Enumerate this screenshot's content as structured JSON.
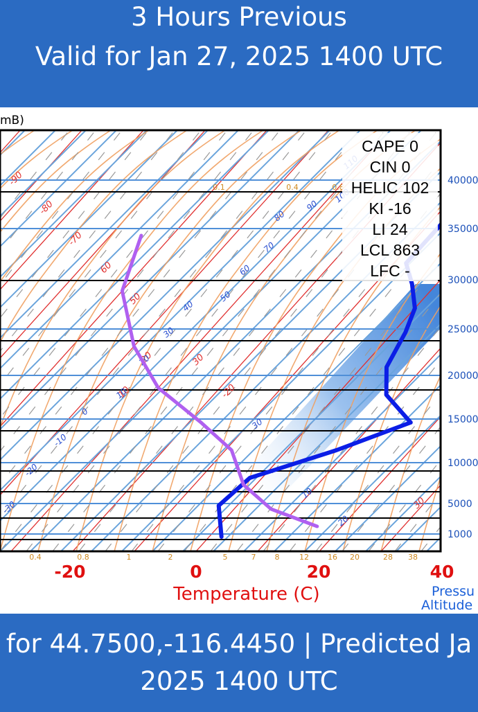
{
  "header": {
    "line1": "3 Hours Previous",
    "line2": "Valid for Jan 27, 2025 1400 UTC"
  },
  "footer": {
    "line1": "for 44.7500,-116.4450 | Predicted Ja",
    "line2": "2025 1400 UTC"
  },
  "chart_data": {
    "type": "line",
    "subtype": "skew-t log-p sounding",
    "left_label_fragment": "mB)",
    "xlabel": "Temperature (C)",
    "right_axis_label": [
      "Pressu",
      "Altitude"
    ],
    "x_ticks": [
      "-20",
      "0",
      "20",
      "40"
    ],
    "x_range": [
      -30,
      40
    ],
    "altitude_ticks": [
      "40000",
      "35000",
      "30000",
      "25000",
      "20000",
      "15000",
      "10000",
      "5000",
      "1000"
    ],
    "mixing_ratio_labels": [
      "0.4",
      "0.8",
      "1",
      "2",
      "5",
      "7",
      "8",
      "12",
      "16",
      "20",
      "28",
      "38"
    ],
    "mixing_ratio_top_labels": [
      "0.1",
      "0.4",
      "0.8"
    ],
    "dry_adiabat_labels": [
      "-90",
      "-80",
      "-70",
      "60",
      "50",
      "-20",
      "10",
      "20",
      "30",
      "30"
    ],
    "moist_adiabat_labels": [
      "110",
      "100",
      "90",
      "80",
      "70",
      "60",
      "50",
      "40",
      "30",
      "20",
      "10",
      "0",
      "-10",
      "-20",
      "-30",
      "30",
      "20",
      "10"
    ],
    "indices": [
      {
        "name": "CAPE",
        "value": "0"
      },
      {
        "name": "CIN",
        "value": "0"
      },
      {
        "name": "HELIC",
        "value": "102"
      },
      {
        "name": "KI",
        "value": "-16"
      },
      {
        "name": "LI",
        "value": "24"
      },
      {
        "name": "LCL",
        "value": "863"
      },
      {
        "name": "LFC",
        "value": "-"
      }
    ],
    "series": [
      {
        "role": "temperature",
        "color": "#ff0000",
        "points": [
          [
            39,
            193
          ],
          [
            18,
            264
          ],
          [
            2,
            316
          ],
          [
            8,
            390
          ],
          [
            24,
            440
          ],
          [
            44,
            495
          ],
          [
            68,
            550
          ],
          [
            86,
            590
          ],
          [
            95,
            625
          ],
          [
            84,
            670
          ],
          [
            58,
            705
          ],
          [
            40,
            740
          ],
          [
            46,
            775
          ]
        ]
      },
      {
        "role": "dewpoint",
        "color": "#0b1ee6",
        "points": [
          [
            -8,
            193
          ],
          [
            -6,
            240
          ],
          [
            -8,
            300
          ],
          [
            -8,
            380
          ],
          [
            -4,
            410
          ],
          [
            0,
            445
          ],
          [
            2,
            480
          ],
          [
            4,
            530
          ],
          [
            8,
            570
          ],
          [
            16,
            610
          ],
          [
            8,
            650
          ],
          [
            -2,
            690
          ],
          [
            -3,
            730
          ],
          [
            2,
            775
          ]
        ]
      },
      {
        "role": "parcel",
        "color": "#b060f0",
        "points": [
          [
            -55,
            340
          ],
          [
            -50,
            420
          ],
          [
            -40,
            500
          ],
          [
            -30,
            560
          ],
          [
            -18,
            610
          ],
          [
            -9,
            650
          ],
          [
            -2,
            700
          ],
          [
            6,
            735
          ],
          [
            16,
            760
          ]
        ]
      }
    ],
    "colors": {
      "isobar": "#000000",
      "isotherm": "#e03030",
      "dry_adiabat": "#6aa4dc",
      "moist_adiabat": "#f0a060",
      "mixing_ratio": "#999999",
      "highlight_band": "#4a8fe0",
      "banner": "#2b6bc2"
    }
  }
}
